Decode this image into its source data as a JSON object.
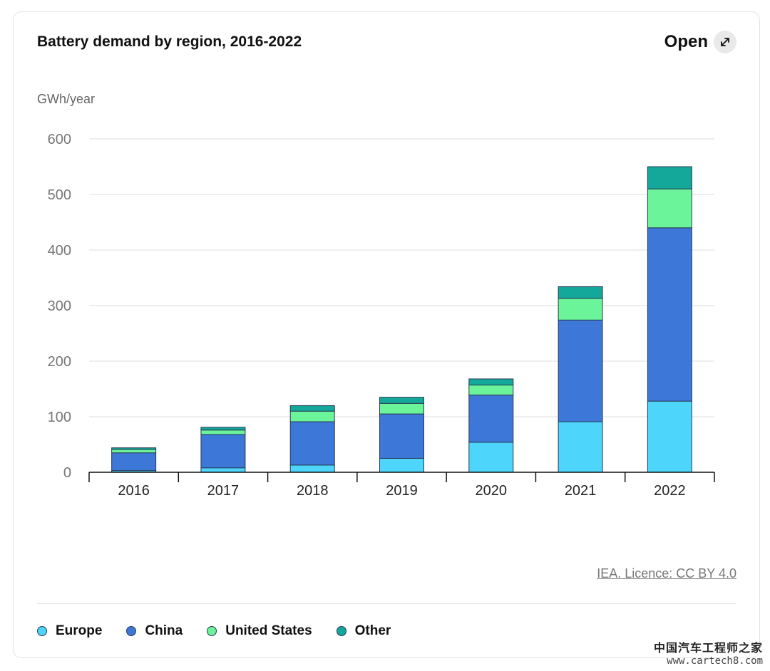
{
  "header": {
    "title": "Battery demand by region, 2016-2022",
    "open_label": "Open",
    "open_icon": "expand-arrows-icon"
  },
  "chart_data": {
    "type": "bar",
    "stacked": true,
    "title": "Battery demand by region, 2016-2022",
    "ylabel": "GWh/year",
    "xlabel": "",
    "categories": [
      "2016",
      "2017",
      "2018",
      "2019",
      "2020",
      "2021",
      "2022"
    ],
    "ylim": [
      0,
      600
    ],
    "yticks": [
      0,
      100,
      200,
      300,
      400,
      500,
      600
    ],
    "grid": true,
    "legend_position": "bottom",
    "series": [
      {
        "name": "Europe",
        "color": "#4dd5fb",
        "values": [
          3,
          8,
          13,
          25,
          54,
          91,
          128
        ]
      },
      {
        "name": "China",
        "color": "#3d78d8",
        "values": [
          32,
          60,
          78,
          80,
          85,
          183,
          312
        ]
      },
      {
        "name": "United States",
        "color": "#6bf49a",
        "values": [
          6,
          8,
          19,
          19,
          18,
          39,
          70
        ]
      },
      {
        "name": "Other",
        "color": "#13a89a",
        "values": [
          3,
          5,
          10,
          11,
          11,
          21,
          40
        ]
      }
    ]
  },
  "footer": {
    "licence": "IEA. Licence: CC BY 4.0"
  },
  "watermark": {
    "text_cn": "中国汽车工程师之家",
    "url": "www.cartech8.com"
  }
}
